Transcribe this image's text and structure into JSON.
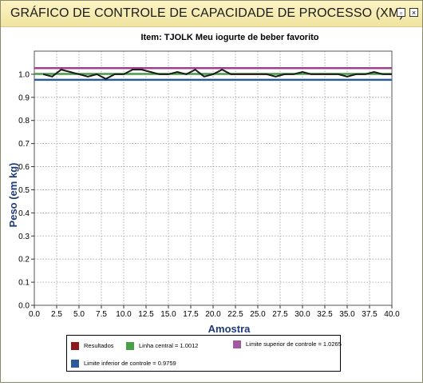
{
  "window": {
    "title": "GRÁFICO DE CONTROLE DE CAPACIDADE DE PROCESSO (XM)",
    "minimize_glyph": "▫",
    "close_glyph": "×"
  },
  "chart_data": {
    "type": "line",
    "title": "Item: TJOLK Meu iogurte de beber favorito",
    "xlabel": "Amostra",
    "ylabel": "Peso (em kg)",
    "xlim": [
      0,
      40
    ],
    "ylim": [
      0,
      1.1
    ],
    "x_ticks": [
      "0.0",
      "2.5",
      "5.0",
      "7.5",
      "10.0",
      "12.5",
      "15.0",
      "17.5",
      "20.0",
      "22.5",
      "25.0",
      "27.5",
      "30.0",
      "32.5",
      "35.0",
      "37.5",
      "40.0"
    ],
    "y_ticks": [
      "0.0",
      "0.1",
      "0.2",
      "0.3",
      "0.4",
      "0.5",
      "0.6",
      "0.7",
      "0.8",
      "0.9",
      "1.0"
    ],
    "grid": true,
    "series": [
      {
        "name": "Resultados",
        "color": "#1a1a1a",
        "x": [
          1,
          2,
          3,
          4,
          5,
          6,
          7,
          8,
          9,
          10,
          11,
          12,
          13,
          14,
          15,
          16,
          17,
          18,
          19,
          20,
          21,
          22,
          23,
          24,
          25,
          26,
          27,
          28,
          29,
          30,
          31,
          32,
          33,
          34,
          35,
          36,
          37,
          38,
          39,
          40
        ],
        "y": [
          1.0,
          0.99,
          1.02,
          1.01,
          1.0,
          0.99,
          1.0,
          0.98,
          1.0,
          1.0,
          1.02,
          1.02,
          1.01,
          1.0,
          1.0,
          1.01,
          1.0,
          1.02,
          0.99,
          1.0,
          1.02,
          1.0,
          1.0,
          1.0,
          1.0,
          1.0,
          0.99,
          1.0,
          1.0,
          1.01,
          1.0,
          1.0,
          1.0,
          1.0,
          0.99,
          1.0,
          1.0,
          1.01,
          1.0,
          1.0
        ]
      },
      {
        "name": "Linha central = 1.0012",
        "color": "#4a9a4a",
        "y_constant": 1.0012
      },
      {
        "name": "Limite superior de controle = 1.0265",
        "color": "#a04090",
        "y_constant": 1.0265
      },
      {
        "name": "Limite inferior de controle = 0.9759",
        "color": "#2a5a9a",
        "y_constant": 0.9759
      }
    ],
    "legend_colors": {
      "results": "#8b1a1a",
      "center": "#4aa04a",
      "upper": "#a05aa0",
      "lower": "#2a5a9a"
    },
    "legend_placement": "bottom"
  },
  "legend": {
    "results": "Resultados",
    "center": "Linha central = 1.0012",
    "upper": "Limite superior de controle = 1.0265",
    "lower": "Limite inferior de controle = 0.9759"
  }
}
